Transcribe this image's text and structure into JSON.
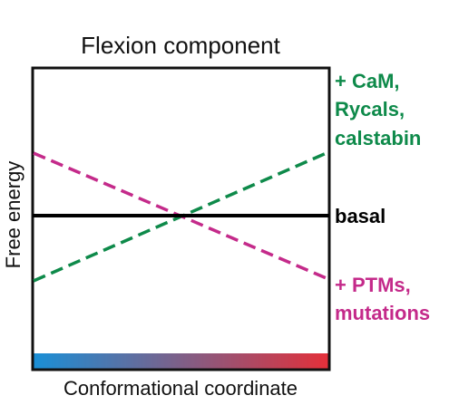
{
  "title": "Flexion component",
  "y_axis_label": "Free energy",
  "x_axis_label": "Conformational coordinate",
  "gradient": {
    "start_color": "#1a8fd6",
    "end_color": "#e3303a"
  },
  "lines": [
    {
      "id": "stabilizers",
      "style": "dashed",
      "color": "#0e8a4a",
      "label_lines": [
        "+ CaM,",
        "Rycals,",
        "calstabin"
      ]
    },
    {
      "id": "basal",
      "style": "solid",
      "color": "#000000",
      "label_lines": [
        "basal"
      ]
    },
    {
      "id": "destabilizers",
      "style": "dashed",
      "color": "#c42a8a",
      "label_lines": [
        "+ PTMs,",
        "mutations"
      ]
    }
  ]
}
